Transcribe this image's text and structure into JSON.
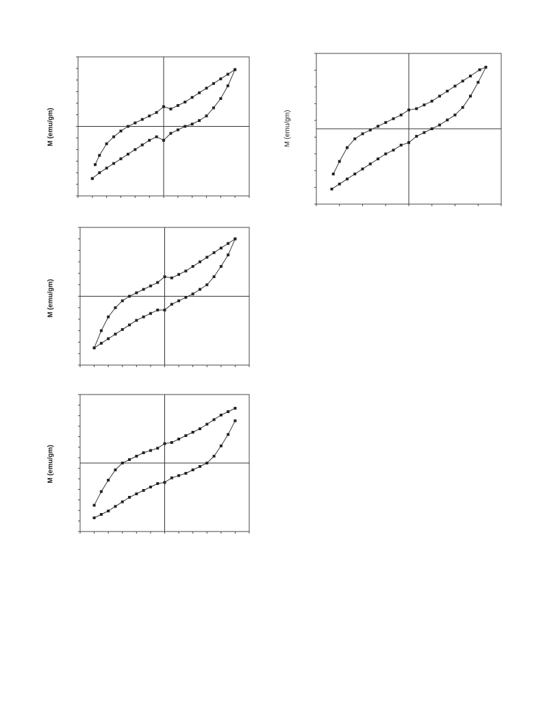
{
  "chart_data": [
    {
      "type": "scatter",
      "title": "",
      "xlabel": "",
      "ylabel": "M (emu/gm)",
      "xlim": [
        -6,
        6
      ],
      "ylim": [
        -6,
        6
      ],
      "grid": false,
      "x_ticks": 12,
      "y_ticks": 12,
      "series": [
        {
          "values": [
            [
              5.0,
              4.9
            ],
            [
              4.5,
              4.5
            ],
            [
              4.0,
              4.1
            ],
            [
              3.5,
              3.7
            ],
            [
              3.0,
              3.3
            ],
            [
              2.5,
              2.9
            ],
            [
              2.0,
              2.5
            ],
            [
              1.5,
              2.1
            ],
            [
              1.0,
              1.8
            ],
            [
              0.5,
              1.5
            ],
            [
              0.0,
              1.7
            ],
            [
              -0.5,
              1.2
            ],
            [
              -1.0,
              0.9
            ],
            [
              -1.5,
              0.6
            ],
            [
              -2.0,
              0.3
            ],
            [
              -2.5,
              0.0
            ],
            [
              -3.0,
              -0.4
            ],
            [
              -3.5,
              -0.9
            ],
            [
              -4.0,
              -1.5
            ],
            [
              -4.5,
              -2.5
            ],
            [
              -4.8,
              -3.3
            ],
            [
              -5.0,
              -4.5
            ],
            [
              -5.0,
              -4.5
            ],
            [
              -4.5,
              -4.0
            ],
            [
              -4.0,
              -3.6
            ],
            [
              -3.5,
              -3.2
            ],
            [
              -3.0,
              -2.8
            ],
            [
              -2.5,
              -2.4
            ],
            [
              -2.0,
              -2.0
            ],
            [
              -1.5,
              -1.6
            ],
            [
              -1.0,
              -1.2
            ],
            [
              -0.5,
              -0.9
            ],
            [
              0.0,
              -1.2
            ],
            [
              0.5,
              -0.6
            ],
            [
              1.0,
              -0.3
            ],
            [
              1.5,
              0.0
            ],
            [
              2.0,
              0.2
            ],
            [
              2.5,
              0.5
            ],
            [
              3.0,
              0.9
            ],
            [
              3.5,
              1.6
            ],
            [
              4.0,
              2.4
            ],
            [
              4.5,
              3.5
            ],
            [
              5.0,
              4.9
            ]
          ]
        }
      ]
    },
    {
      "type": "scatter",
      "title": "",
      "xlabel": "",
      "ylabel": "M (emu/gm)",
      "xlim": [
        -6,
        6
      ],
      "ylim": [
        -6,
        6
      ],
      "grid": false,
      "x_ticks": 12,
      "y_ticks": 12,
      "series": [
        {
          "values": [
            [
              5.0,
              5.0
            ],
            [
              4.5,
              4.6
            ],
            [
              4.0,
              4.2
            ],
            [
              3.5,
              3.8
            ],
            [
              3.0,
              3.4
            ],
            [
              2.5,
              3.0
            ],
            [
              2.0,
              2.6
            ],
            [
              1.5,
              2.2
            ],
            [
              1.0,
              1.9
            ],
            [
              0.5,
              1.6
            ],
            [
              0.0,
              1.7
            ],
            [
              -0.5,
              1.2
            ],
            [
              -1.0,
              0.9
            ],
            [
              -1.5,
              0.6
            ],
            [
              -2.0,
              0.3
            ],
            [
              -2.5,
              0.0
            ],
            [
              -3.0,
              -0.4
            ],
            [
              -3.5,
              -1.0
            ],
            [
              -4.0,
              -1.8
            ],
            [
              -4.5,
              -3.0
            ],
            [
              -5.0,
              -4.5
            ],
            [
              -5.0,
              -4.5
            ],
            [
              -4.5,
              -4.1
            ],
            [
              -4.0,
              -3.7
            ],
            [
              -3.5,
              -3.3
            ],
            [
              -3.0,
              -2.9
            ],
            [
              -2.5,
              -2.5
            ],
            [
              -2.0,
              -2.1
            ],
            [
              -1.5,
              -1.8
            ],
            [
              -1.0,
              -1.5
            ],
            [
              -0.5,
              -1.2
            ],
            [
              0.0,
              -1.2
            ],
            [
              0.5,
              -0.7
            ],
            [
              1.0,
              -0.4
            ],
            [
              1.5,
              -0.1
            ],
            [
              2.0,
              0.2
            ],
            [
              2.5,
              0.6
            ],
            [
              3.0,
              1.0
            ],
            [
              3.5,
              1.7
            ],
            [
              4.0,
              2.6
            ],
            [
              4.5,
              3.6
            ],
            [
              5.0,
              5.0
            ]
          ]
        }
      ]
    },
    {
      "type": "scatter",
      "title": "",
      "xlabel": "",
      "ylabel": "M (emu/gm)",
      "xlim": [
        -6,
        6
      ],
      "ylim": [
        -6,
        6
      ],
      "grid": false,
      "x_ticks": 12,
      "y_ticks": 13,
      "series": [
        {
          "values": [
            [
              5.0,
              4.8
            ],
            [
              4.5,
              4.5
            ],
            [
              4.0,
              4.2
            ],
            [
              3.5,
              3.8
            ],
            [
              3.0,
              3.4
            ],
            [
              2.5,
              3.0
            ],
            [
              2.0,
              2.7
            ],
            [
              1.5,
              2.4
            ],
            [
              1.0,
              2.1
            ],
            [
              0.5,
              1.8
            ],
            [
              0.0,
              1.7
            ],
            [
              -0.5,
              1.3
            ],
            [
              -1.0,
              1.1
            ],
            [
              -1.5,
              0.9
            ],
            [
              -2.0,
              0.6
            ],
            [
              -2.5,
              0.3
            ],
            [
              -3.0,
              0.0
            ],
            [
              -3.5,
              -0.6
            ],
            [
              -4.0,
              -1.5
            ],
            [
              -4.5,
              -2.5
            ],
            [
              -5.0,
              -3.7
            ],
            [
              -5.0,
              -4.8
            ],
            [
              -4.5,
              -4.5
            ],
            [
              -4.0,
              -4.2
            ],
            [
              -3.5,
              -3.8
            ],
            [
              -3.0,
              -3.4
            ],
            [
              -2.5,
              -3.0
            ],
            [
              -2.0,
              -2.7
            ],
            [
              -1.5,
              -2.4
            ],
            [
              -1.0,
              -2.1
            ],
            [
              -0.5,
              -1.8
            ],
            [
              0.0,
              -1.7
            ],
            [
              0.5,
              -1.3
            ],
            [
              1.0,
              -1.1
            ],
            [
              1.5,
              -0.9
            ],
            [
              2.0,
              -0.6
            ],
            [
              2.5,
              -0.3
            ],
            [
              3.0,
              0.0
            ],
            [
              3.5,
              0.6
            ],
            [
              4.0,
              1.5
            ],
            [
              4.5,
              2.5
            ],
            [
              5.0,
              3.7
            ]
          ]
        }
      ]
    },
    {
      "type": "scatter",
      "title": "",
      "xlabel": "",
      "ylabel": "M (emu/gm)",
      "xlim": [
        -6,
        6
      ],
      "ylim": [
        -6,
        6
      ],
      "grid": false,
      "x_ticks": 8,
      "y_ticks": 9,
      "series": [
        {
          "values": [
            [
              5.0,
              4.9
            ],
            [
              4.6,
              4.7
            ],
            [
              4.0,
              4.2
            ],
            [
              3.5,
              3.8
            ],
            [
              3.0,
              3.4
            ],
            [
              2.5,
              3.0
            ],
            [
              2.0,
              2.6
            ],
            [
              1.5,
              2.2
            ],
            [
              1.0,
              1.9
            ],
            [
              0.5,
              1.6
            ],
            [
              0.0,
              1.5
            ],
            [
              -0.5,
              1.1
            ],
            [
              -1.0,
              0.8
            ],
            [
              -1.5,
              0.5
            ],
            [
              -2.0,
              0.2
            ],
            [
              -2.5,
              -0.1
            ],
            [
              -3.0,
              -0.4
            ],
            [
              -3.5,
              -0.8
            ],
            [
              -4.0,
              -1.5
            ],
            [
              -4.5,
              -2.6
            ],
            [
              -4.9,
              -3.6
            ],
            [
              -5.0,
              -4.8
            ],
            [
              -4.5,
              -4.4
            ],
            [
              -4.0,
              -4.0
            ],
            [
              -3.5,
              -3.6
            ],
            [
              -3.0,
              -3.2
            ],
            [
              -2.5,
              -2.8
            ],
            [
              -2.0,
              -2.4
            ],
            [
              -1.5,
              -2.0
            ],
            [
              -1.0,
              -1.7
            ],
            [
              -0.5,
              -1.3
            ],
            [
              0.0,
              -1.1
            ],
            [
              0.5,
              -0.6
            ],
            [
              1.0,
              -0.3
            ],
            [
              1.5,
              0.0
            ],
            [
              2.0,
              0.3
            ],
            [
              2.5,
              0.7
            ],
            [
              3.0,
              1.1
            ],
            [
              3.5,
              1.7
            ],
            [
              4.0,
              2.6
            ],
            [
              4.5,
              3.7
            ],
            [
              5.0,
              4.9
            ]
          ]
        }
      ]
    }
  ]
}
